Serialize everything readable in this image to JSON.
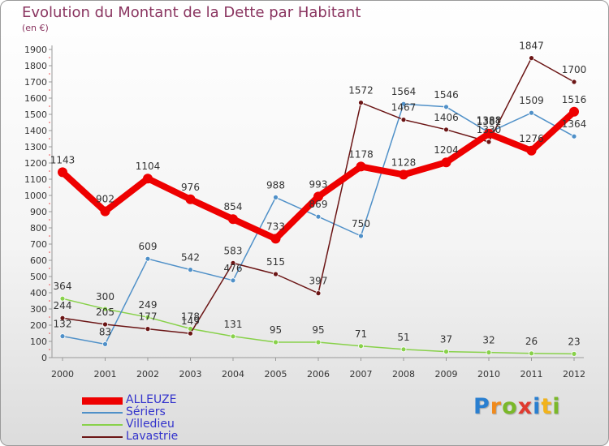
{
  "title": "Evolution du Montant de la Dette par Habitant",
  "subtitle": "(en €)",
  "brand": {
    "letters": [
      "P",
      "r",
      "o",
      "x",
      "i",
      "t",
      "i"
    ],
    "colors": [
      "#2a7fd0",
      "#f08a1c",
      "#7ab829",
      "#e03a2f",
      "#2a7fd0",
      "#f2b31b",
      "#7ab829"
    ]
  },
  "chart_data": {
    "type": "line",
    "title": "Evolution du Montant de la Dette par Habitant",
    "subtitle": "(en €)",
    "x": [
      "2000",
      "2001",
      "2002",
      "2003",
      "2004",
      "2005",
      "2006",
      "2007",
      "2008",
      "2009",
      "2010",
      "2011",
      "2012"
    ],
    "ylim": [
      0,
      1900
    ],
    "yticks": [
      0,
      100,
      200,
      300,
      400,
      500,
      600,
      700,
      800,
      900,
      1000,
      1100,
      1200,
      1300,
      1400,
      1500,
      1600,
      1700,
      1800,
      1900
    ],
    "grid": false,
    "legend_position": "bottom-left",
    "series": [
      {
        "name": "ALLEUZE",
        "color": "#ee0000",
        "values": [
          1143,
          902,
          1104,
          976,
          854,
          733,
          993,
          1178,
          1128,
          1204,
          1381,
          1276,
          1516
        ]
      },
      {
        "name": "Sériers",
        "color": "#4f90c8",
        "values": [
          132,
          83,
          609,
          542,
          476,
          988,
          869,
          750,
          1564,
          1546,
          1388,
          1509,
          1364
        ]
      },
      {
        "name": "Villedieu",
        "color": "#88d14a",
        "values": [
          364,
          300,
          249,
          178,
          131,
          95,
          95,
          71,
          51,
          37,
          32,
          26,
          23
        ]
      },
      {
        "name": "Lavastrie",
        "color": "#6b1515",
        "values": [
          244,
          205,
          177,
          149,
          583,
          515,
          397,
          1572,
          1467,
          1406,
          1330,
          1847,
          1700
        ]
      }
    ]
  }
}
